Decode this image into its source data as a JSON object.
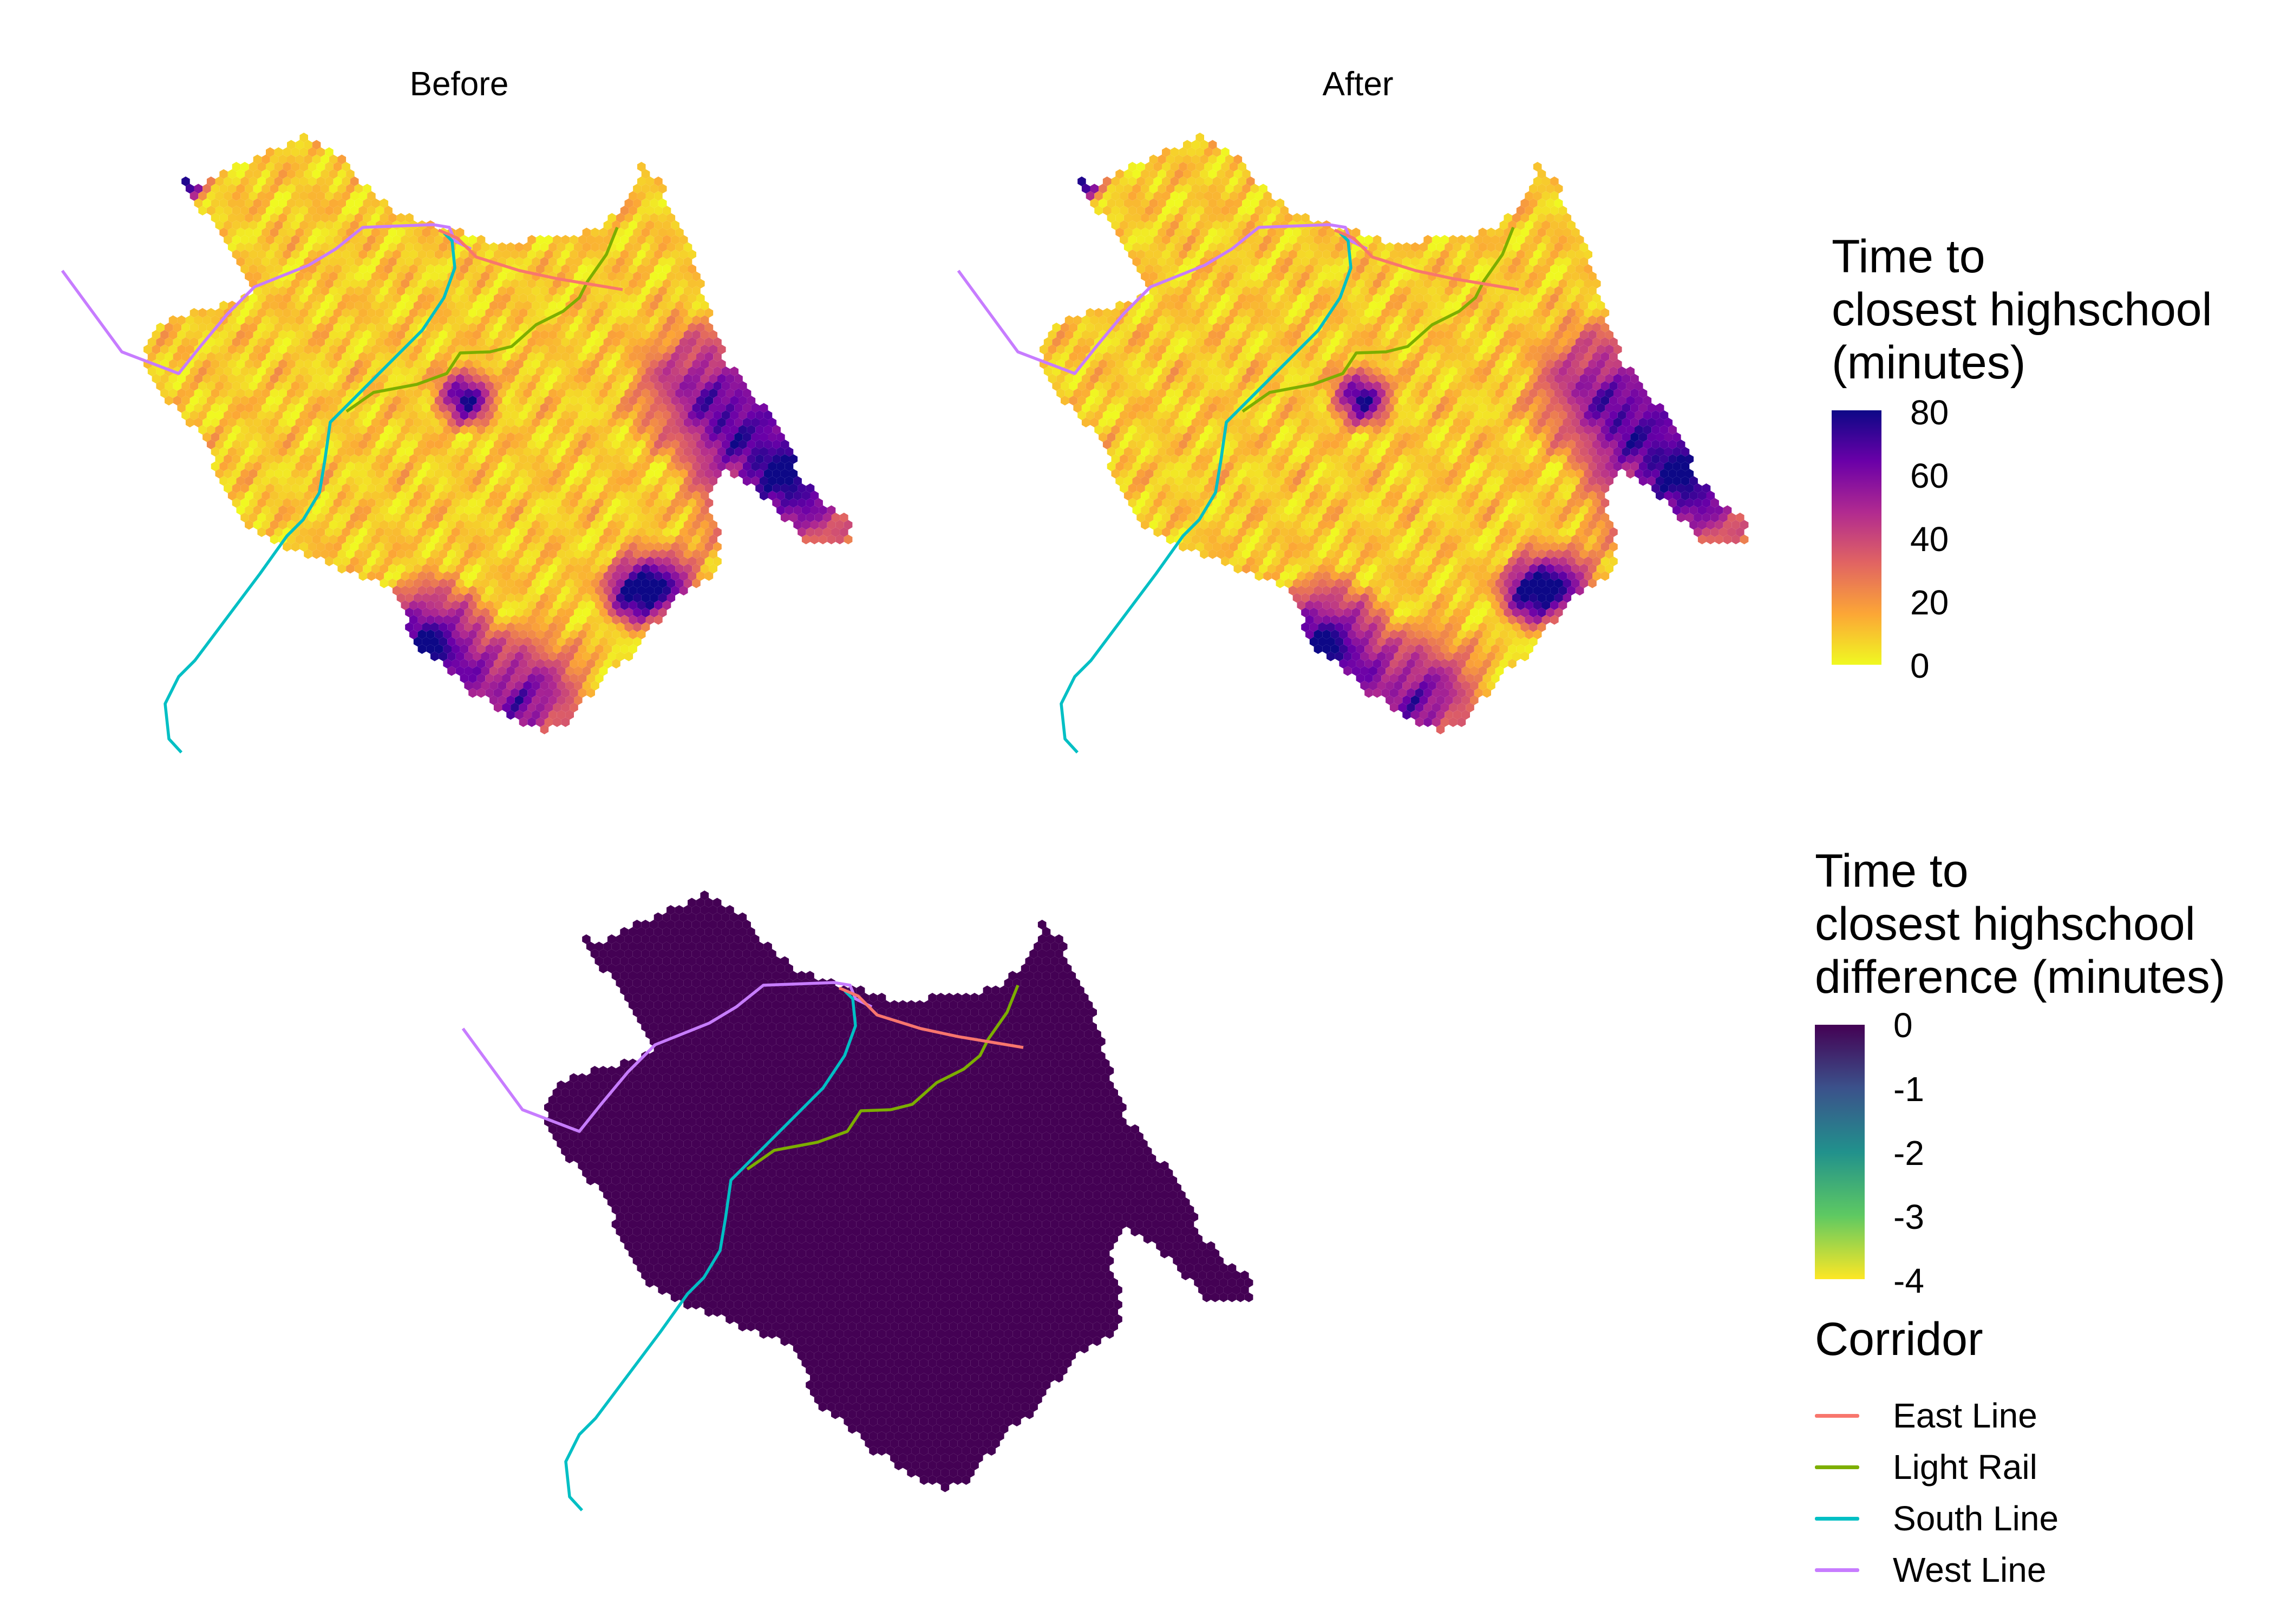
{
  "panels": {
    "before": {
      "title": "Before"
    },
    "after": {
      "title": "After"
    }
  },
  "legend_time": {
    "title_lines": [
      "Time to",
      "closest highschool",
      "(minutes)"
    ],
    "ticks": [
      "80",
      "60",
      "40",
      "20",
      "0"
    ],
    "range": [
      0,
      80
    ],
    "palette": "plasma",
    "colors": [
      "#f0f921",
      "#fca636",
      "#e16462",
      "#b12a90",
      "#6a00a8",
      "#0d0887"
    ]
  },
  "legend_diff": {
    "title_lines": [
      "Time to",
      "closest highschool",
      "difference (minutes)"
    ],
    "ticks": [
      "0",
      "-1",
      "-2",
      "-3",
      "-4"
    ],
    "range": [
      -4,
      0
    ],
    "palette": "viridis",
    "colors": [
      "#440154",
      "#3b528b",
      "#21918c",
      "#5ec962",
      "#fde725"
    ]
  },
  "legend_corridor": {
    "title": "Corridor",
    "items": [
      {
        "label": "East Line",
        "color": "#f8766d"
      },
      {
        "label": "Light Rail",
        "color": "#7cae00"
      },
      {
        "label": "South Line",
        "color": "#00bfc4"
      },
      {
        "label": "West Line",
        "color": "#c77cff"
      }
    ]
  },
  "colors": {
    "diff_fill": "#440154",
    "hotspot": "#0d0887"
  }
}
